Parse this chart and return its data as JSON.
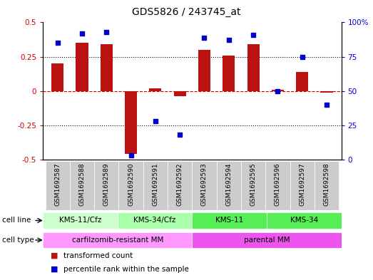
{
  "title": "GDS5826 / 243745_at",
  "samples": [
    "GSM1692587",
    "GSM1692588",
    "GSM1692589",
    "GSM1692590",
    "GSM1692591",
    "GSM1692592",
    "GSM1692593",
    "GSM1692594",
    "GSM1692595",
    "GSM1692596",
    "GSM1692597",
    "GSM1692598"
  ],
  "transformed_count": [
    0.2,
    0.35,
    0.34,
    -0.46,
    0.02,
    -0.04,
    0.3,
    0.26,
    0.34,
    0.01,
    0.14,
    -0.01
  ],
  "percentile_rank": [
    85,
    92,
    93,
    3,
    28,
    18,
    89,
    87,
    91,
    50,
    75,
    40
  ],
  "cell_line_groups": [
    {
      "label": "KMS-11/Cfz",
      "start": 0,
      "end": 3,
      "color": "#CCFFCC"
    },
    {
      "label": "KMS-34/Cfz",
      "start": 3,
      "end": 6,
      "color": "#AAFFAA"
    },
    {
      "label": "KMS-11",
      "start": 6,
      "end": 9,
      "color": "#55EE55"
    },
    {
      "label": "KMS-34",
      "start": 9,
      "end": 12,
      "color": "#55EE55"
    }
  ],
  "cell_type_groups": [
    {
      "label": "carfilzomib-resistant MM",
      "start": 0,
      "end": 6,
      "color": "#FF99FF"
    },
    {
      "label": "parental MM",
      "start": 6,
      "end": 12,
      "color": "#EE55EE"
    }
  ],
  "bar_color": "#BB1111",
  "dot_color": "#0000CC",
  "ylim_left": [
    -0.5,
    0.5
  ],
  "ylim_right": [
    0,
    100
  ],
  "yticks_left": [
    -0.5,
    -0.25,
    0.0,
    0.25,
    0.5
  ],
  "yticklabels_left": [
    "-0.5",
    "-0.25",
    "0",
    "0.25",
    "0.5"
  ],
  "yticks_right": [
    0,
    25,
    50,
    75,
    100
  ],
  "yticklabels_right": [
    "0",
    "25",
    "50",
    "75",
    "100%"
  ],
  "hlines": [
    -0.25,
    0.0,
    0.25
  ],
  "background_color": "#ffffff",
  "legend_items": [
    {
      "label": "transformed count",
      "color": "#BB1111"
    },
    {
      "label": "percentile rank within the sample",
      "color": "#0000CC"
    }
  ]
}
